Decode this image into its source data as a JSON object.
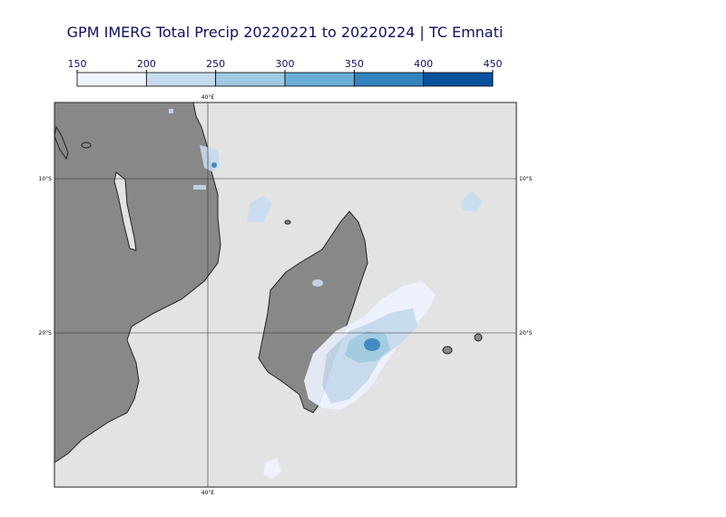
{
  "title": "GPM IMERG Total Precip 20220221 to 20220224 | TC Emnati",
  "colorbar": {
    "ticks": [
      150,
      200,
      250,
      300,
      350,
      400,
      450
    ],
    "colors": [
      "#eff3ff",
      "#c6dbef",
      "#9ecae1",
      "#6baed6",
      "#3182bd",
      "#08519c"
    ]
  },
  "graticule": {
    "meridians": [
      {
        "label": "40°E"
      }
    ],
    "parallels": [
      {
        "label": "10°S"
      },
      {
        "label": "20°S"
      }
    ]
  }
}
